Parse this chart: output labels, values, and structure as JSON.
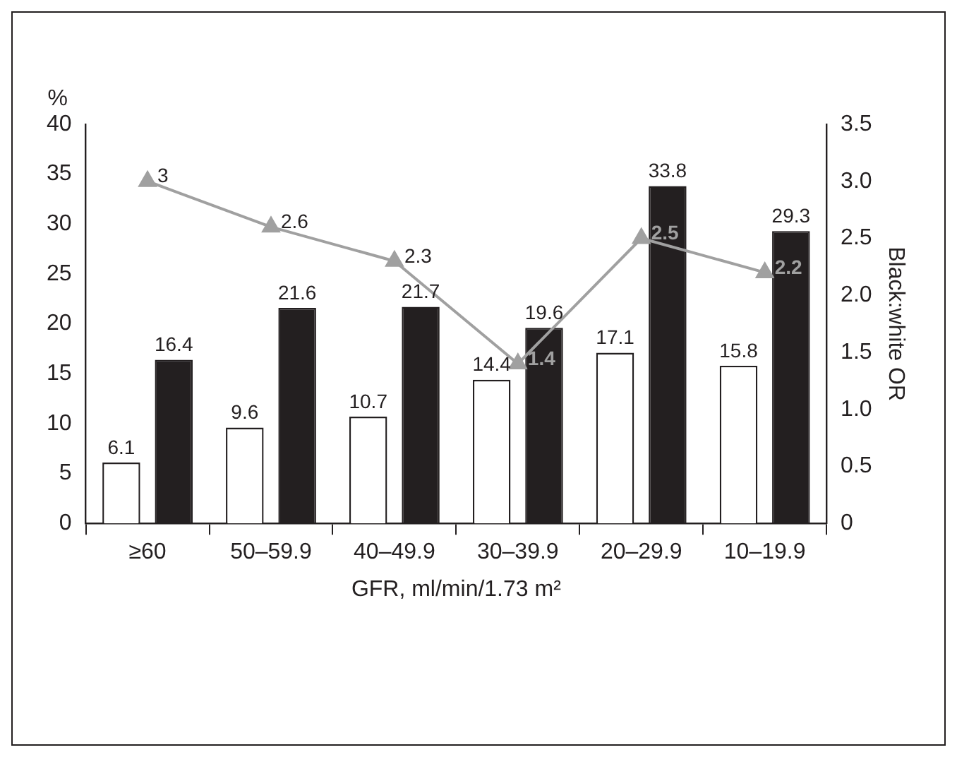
{
  "chart_data": {
    "type": "bar",
    "xlabel": "GFR, ml/min/1.73 m²",
    "ylabel": "%",
    "y2label": "Black:white OR",
    "categories": [
      "≥60",
      "50–59.9",
      "40–49.9",
      "30–39.9",
      "20–29.9",
      "10–19.9"
    ],
    "series": [
      {
        "type": "bar",
        "color": "#ffffff",
        "values": [
          6.1,
          9.6,
          10.7,
          14.4,
          17.1,
          15.8
        ]
      },
      {
        "type": "bar",
        "color": "#231f20",
        "values": [
          16.4,
          21.6,
          21.7,
          19.6,
          33.8,
          29.3
        ]
      },
      {
        "type": "line",
        "axis": "y2",
        "color": "#a0a0a0",
        "values": [
          3,
          2.6,
          2.3,
          1.4,
          2.5,
          2.2
        ]
      }
    ],
    "ylim": [
      0,
      40
    ],
    "yticks": [
      0,
      5,
      10,
      15,
      20,
      25,
      30,
      35,
      40
    ],
    "y2lim": [
      0,
      3.5
    ],
    "y2ticks": [
      0,
      {
        "value": 0.5,
        "label": "0.5"
      },
      {
        "value": 1,
        "label": "1.0"
      },
      {
        "value": 1.5,
        "label": "1.5"
      },
      {
        "value": 2,
        "label": "2.0"
      },
      {
        "value": 2.5,
        "label": "2.5"
      },
      {
        "value": 3,
        "label": "3.0"
      },
      {
        "value": 3.5,
        "label": "3.5"
      }
    ],
    "data_labels": true,
    "grid": false,
    "legend": false,
    "marker": "triangle",
    "line_style": "solid"
  }
}
